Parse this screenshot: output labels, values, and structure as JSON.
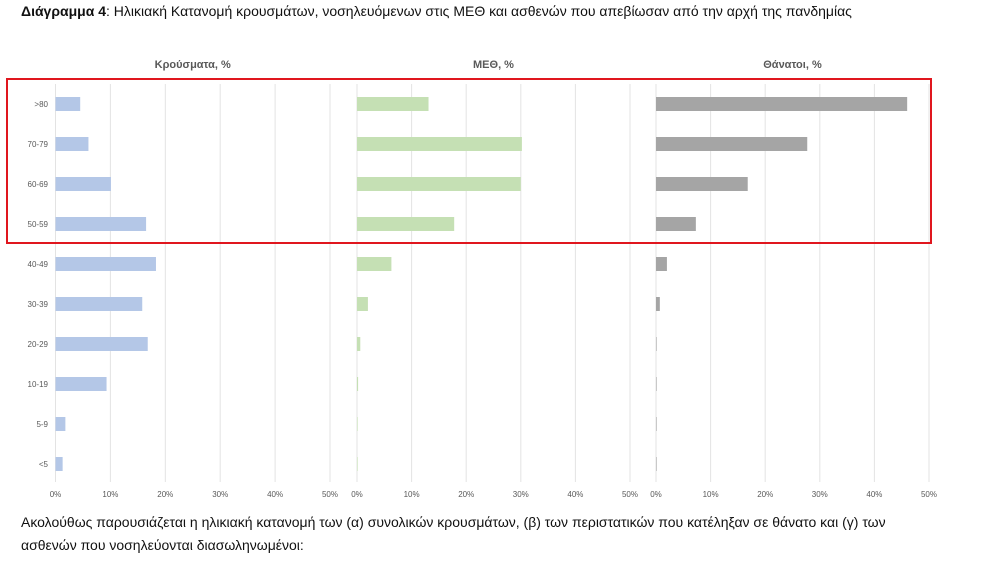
{
  "title": {
    "label": "Διάγραμμα 4",
    "text": ": Ηλικιακή Κατανομή κρουσμάτων, νοσηλευόμενων στις ΜΕΘ και ασθενών που απεβίωσαν από την αρχή της πανδημίας"
  },
  "paragraph": {
    "line1": "Ακολούθως παρουσιάζεται η ηλικιακή κατανομή των (α) συνολικών κρουσμάτων, (β) των περιστατικών που κατέληξαν σε θάνατο και (γ) των",
    "line2": "ασθενών που νοσηλεύονται διασωληνωμένοι:"
  },
  "highlight_color": "#e0161e",
  "chart_data": {
    "type": "bar",
    "orientation": "horizontal",
    "categories": [
      ">80",
      "70-79",
      "60-69",
      "50-59",
      "40-49",
      "30-39",
      "20-29",
      "10-19",
      "5-9",
      "<5"
    ],
    "xlim": [
      0,
      50
    ],
    "tick_labels": [
      "0%",
      "10%",
      "20%",
      "30%",
      "40%",
      "50%"
    ],
    "grid": true,
    "panels": [
      {
        "title": "Κρούσματα, %",
        "color": "#b4c7e7",
        "values": [
          4.5,
          6.0,
          10.1,
          16.5,
          18.3,
          15.8,
          16.8,
          9.3,
          1.8,
          1.3
        ]
      },
      {
        "title": "ΜΕΘ, %",
        "color": "#c5e0b4",
        "values": [
          13.1,
          30.2,
          30.0,
          17.8,
          6.3,
          2.0,
          0.6,
          0.2,
          0.0,
          0.0
        ]
      },
      {
        "title": "Θάνατοι, %",
        "color": "#a5a5a5",
        "values": [
          46.0,
          27.7,
          16.8,
          7.3,
          2.0,
          0.7,
          0.1,
          0.05,
          0.05,
          0.05
        ]
      }
    ]
  }
}
